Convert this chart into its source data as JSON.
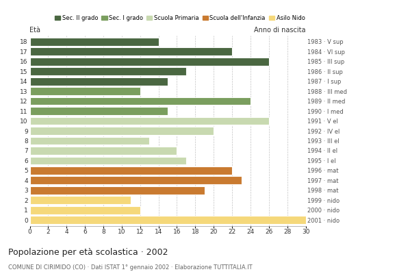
{
  "ages": [
    18,
    17,
    16,
    15,
    14,
    13,
    12,
    11,
    10,
    9,
    8,
    7,
    6,
    5,
    4,
    3,
    2,
    1,
    0
  ],
  "values": [
    14,
    22,
    26,
    17,
    15,
    12,
    24,
    15,
    26,
    20,
    13,
    16,
    17,
    22,
    23,
    19,
    11,
    12,
    30
  ],
  "anno": [
    "1983 · V sup",
    "1984 · VI sup",
    "1985 · III sup",
    "1986 · II sup",
    "1987 · I sup",
    "1988 · III med",
    "1989 · II med",
    "1990 · I med",
    "1991 · V el",
    "1992 · IV el",
    "1993 · III el",
    "1994 · II el",
    "1995 · I el",
    "1996 · mat",
    "1997 · mat",
    "1998 · mat",
    "1999 · nido",
    "2000 · nido",
    "2001 · nido"
  ],
  "colors": [
    "#4a6741",
    "#4a6741",
    "#4a6741",
    "#4a6741",
    "#4a6741",
    "#7a9e5e",
    "#7a9e5e",
    "#7a9e5e",
    "#c8d9b0",
    "#c8d9b0",
    "#c8d9b0",
    "#c8d9b0",
    "#c8d9b0",
    "#c97a30",
    "#c97a30",
    "#c97a30",
    "#f5d87a",
    "#f5d87a",
    "#f5d87a"
  ],
  "legend_labels": [
    "Sec. II grado",
    "Sec. I grado",
    "Scuola Primaria",
    "Scuola dell'Infanzia",
    "Asilo Nido"
  ],
  "legend_colors": [
    "#4a6741",
    "#7a9e5e",
    "#c8d9b0",
    "#c97a30",
    "#f5d87a"
  ],
  "title": "Popolazione per età scolastica · 2002",
  "subtitle": "COMUNE DI CIRIMIDO (CO) · Dati ISTAT 1° gennaio 2002 · Elaborazione TUTTITALIA.IT",
  "xlabel_eta": "Età",
  "xlabel_anno": "Anno di nascita",
  "xlim": [
    0,
    30
  ],
  "xticks": [
    0,
    2,
    4,
    6,
    8,
    10,
    12,
    14,
    16,
    18,
    20,
    22,
    24,
    26,
    28,
    30
  ],
  "background_color": "#ffffff",
  "grid_color": "#999999"
}
